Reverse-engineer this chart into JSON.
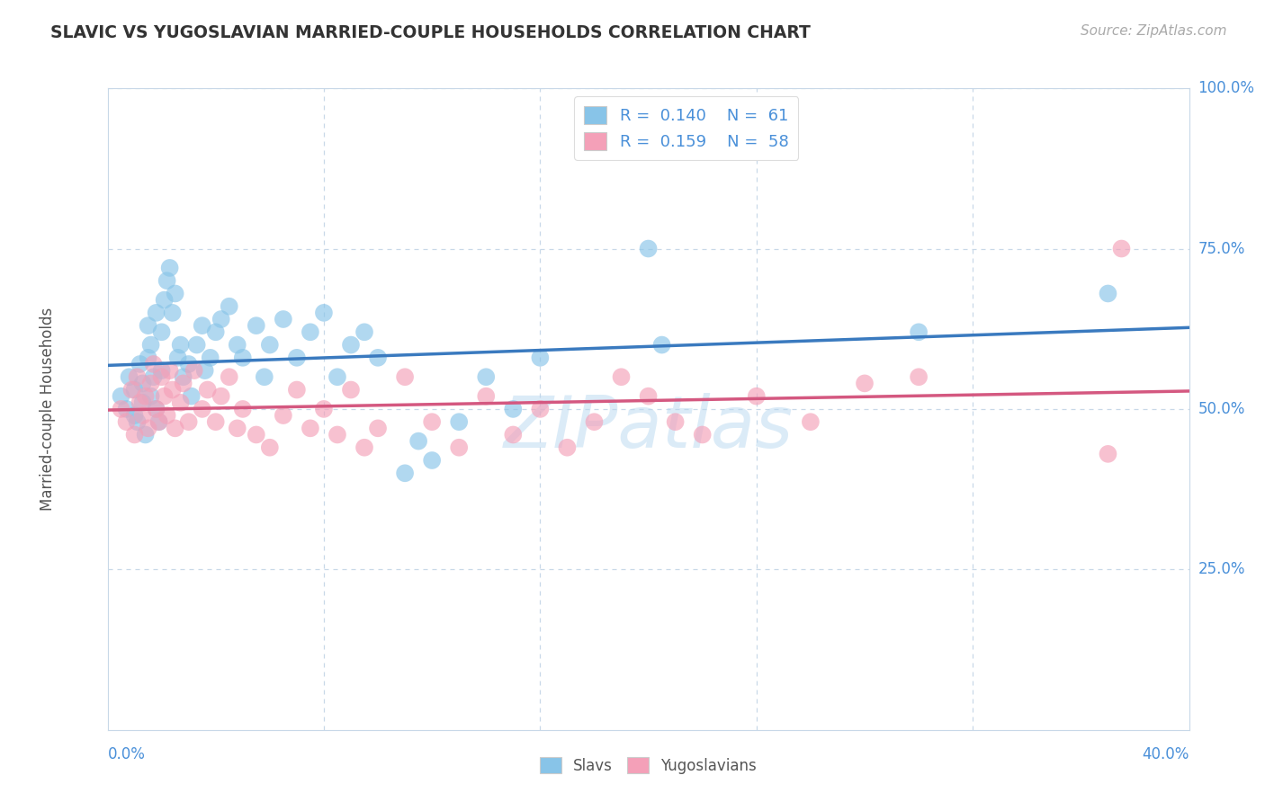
{
  "title": "SLAVIC VS YUGOSLAVIAN MARRIED-COUPLE HOUSEHOLDS CORRELATION CHART",
  "source": "Source: ZipAtlas.com",
  "ylabel": "Married-couple Households",
  "xlim": [
    0.0,
    0.4
  ],
  "ylim": [
    0.0,
    1.0
  ],
  "color_blue": "#88c4e8",
  "color_pink": "#f4a0b8",
  "color_blue_line": "#3a7abf",
  "color_pink_line": "#d45880",
  "color_axis_text": "#4a90d9",
  "background_color": "#ffffff",
  "grid_color": "#c8d8e8",
  "watermark_color": "#b8d8f0",
  "slavs_x": [
    0.005,
    0.007,
    0.008,
    0.01,
    0.01,
    0.011,
    0.012,
    0.013,
    0.013,
    0.014,
    0.015,
    0.015,
    0.016,
    0.016,
    0.017,
    0.018,
    0.018,
    0.019,
    0.02,
    0.02,
    0.021,
    0.022,
    0.023,
    0.024,
    0.025,
    0.026,
    0.027,
    0.028,
    0.03,
    0.031,
    0.033,
    0.035,
    0.036,
    0.038,
    0.04,
    0.042,
    0.045,
    0.048,
    0.05,
    0.055,
    0.058,
    0.06,
    0.065,
    0.07,
    0.075,
    0.08,
    0.085,
    0.09,
    0.095,
    0.1,
    0.11,
    0.115,
    0.12,
    0.13,
    0.14,
    0.15,
    0.16,
    0.2,
    0.205,
    0.3,
    0.37
  ],
  "slavs_y": [
    0.52,
    0.5,
    0.55,
    0.49,
    0.53,
    0.48,
    0.57,
    0.51,
    0.54,
    0.46,
    0.58,
    0.63,
    0.52,
    0.6,
    0.55,
    0.5,
    0.65,
    0.48,
    0.56,
    0.62,
    0.67,
    0.7,
    0.72,
    0.65,
    0.68,
    0.58,
    0.6,
    0.55,
    0.57,
    0.52,
    0.6,
    0.63,
    0.56,
    0.58,
    0.62,
    0.64,
    0.66,
    0.6,
    0.58,
    0.63,
    0.55,
    0.6,
    0.64,
    0.58,
    0.62,
    0.65,
    0.55,
    0.6,
    0.62,
    0.58,
    0.4,
    0.45,
    0.42,
    0.48,
    0.55,
    0.5,
    0.58,
    0.75,
    0.6,
    0.62,
    0.68
  ],
  "yugo_x": [
    0.005,
    0.007,
    0.009,
    0.01,
    0.011,
    0.012,
    0.013,
    0.014,
    0.015,
    0.016,
    0.017,
    0.018,
    0.019,
    0.02,
    0.021,
    0.022,
    0.023,
    0.024,
    0.025,
    0.027,
    0.028,
    0.03,
    0.032,
    0.035,
    0.037,
    0.04,
    0.042,
    0.045,
    0.048,
    0.05,
    0.055,
    0.06,
    0.065,
    0.07,
    0.075,
    0.08,
    0.085,
    0.09,
    0.095,
    0.1,
    0.11,
    0.12,
    0.13,
    0.14,
    0.15,
    0.16,
    0.17,
    0.18,
    0.19,
    0.2,
    0.21,
    0.22,
    0.24,
    0.26,
    0.28,
    0.3,
    0.37,
    0.375
  ],
  "yugo_y": [
    0.5,
    0.48,
    0.53,
    0.46,
    0.55,
    0.51,
    0.49,
    0.52,
    0.47,
    0.54,
    0.57,
    0.5,
    0.48,
    0.55,
    0.52,
    0.49,
    0.56,
    0.53,
    0.47,
    0.51,
    0.54,
    0.48,
    0.56,
    0.5,
    0.53,
    0.48,
    0.52,
    0.55,
    0.47,
    0.5,
    0.46,
    0.44,
    0.49,
    0.53,
    0.47,
    0.5,
    0.46,
    0.53,
    0.44,
    0.47,
    0.55,
    0.48,
    0.44,
    0.52,
    0.46,
    0.5,
    0.44,
    0.48,
    0.55,
    0.52,
    0.48,
    0.46,
    0.52,
    0.48,
    0.54,
    0.55,
    0.43,
    0.75
  ]
}
